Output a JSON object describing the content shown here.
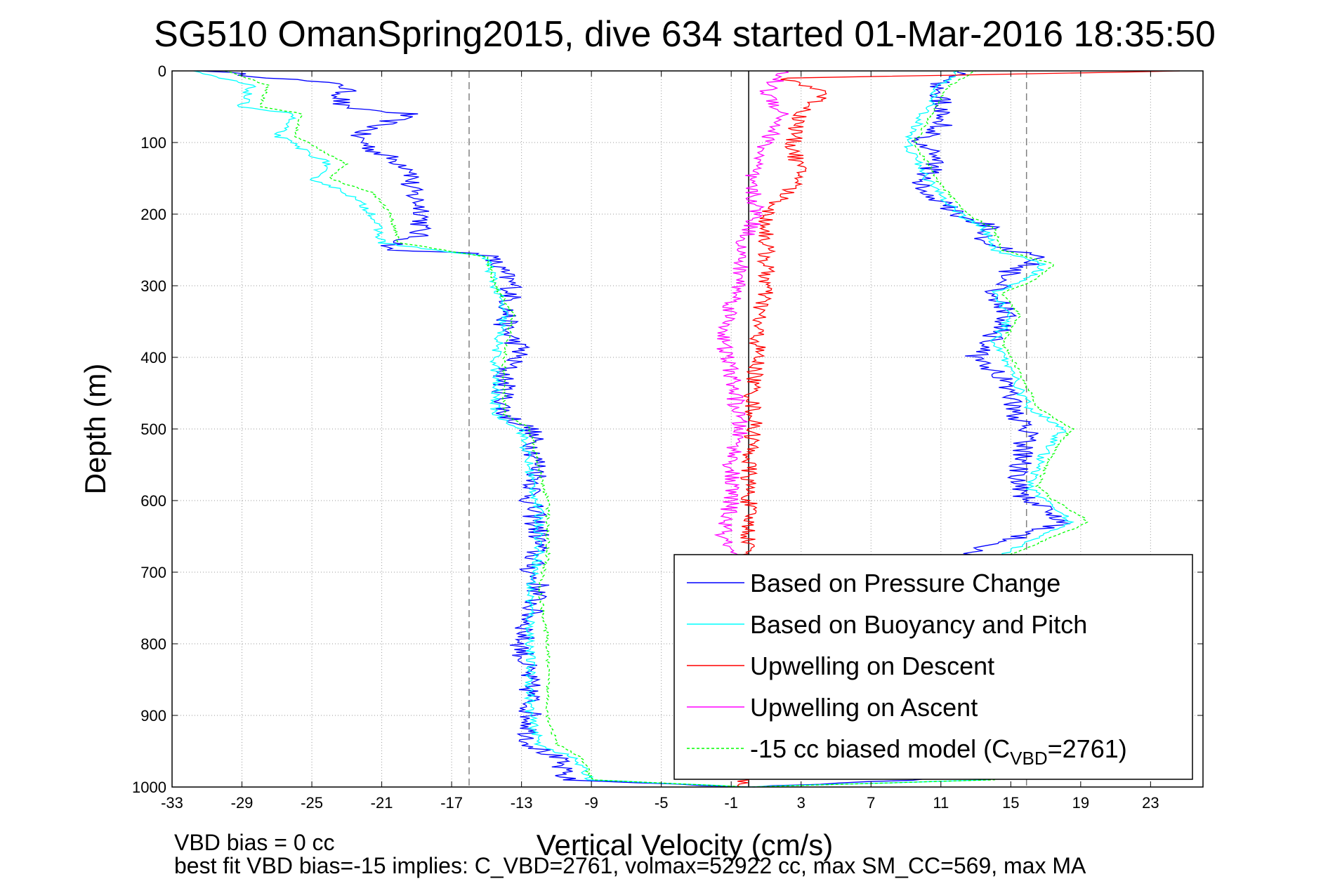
{
  "chart_data": {
    "type": "line",
    "title": "SG510 OmanSpring2015, dive 634 started 01-Mar-2016 18:35:50",
    "xlabel": "Vertical Velocity (cm/s)",
    "ylabel": "Depth (m)",
    "xlim": [
      -33,
      26
    ],
    "ylim": [
      0,
      1000
    ],
    "y_reversed": true,
    "grid": "dotted",
    "legend_position": "lower-right",
    "x_ticks": [
      -33,
      -29,
      -25,
      -21,
      -17,
      -13,
      -9,
      -5,
      -1,
      3,
      7,
      11,
      15,
      19,
      23
    ],
    "y_ticks": [
      0,
      100,
      200,
      300,
      400,
      500,
      600,
      700,
      800,
      900,
      1000
    ],
    "reference_lines": [
      {
        "x": -16,
        "style": "dashed",
        "color": "#808080"
      },
      {
        "x": 15.9,
        "style": "dashed",
        "color": "#808080"
      },
      {
        "x": 0,
        "style": "solid",
        "color": "#000000"
      }
    ],
    "series": [
      {
        "name": "Based on Pressure Change",
        "color": "#0000ff",
        "style": "solid",
        "points": [
          [
            -31,
            0
          ],
          [
            -23,
            20
          ],
          [
            -23.5,
            50
          ],
          [
            -19.5,
            60
          ],
          [
            -22.5,
            90
          ],
          [
            -21.5,
            110
          ],
          [
            -19,
            140
          ],
          [
            -19.5,
            160
          ],
          [
            -18.5,
            200
          ],
          [
            -19,
            230
          ],
          [
            -21,
            250
          ],
          [
            -15,
            255
          ],
          [
            -13.5,
            300
          ],
          [
            -14,
            360
          ],
          [
            -13,
            390
          ],
          [
            -14,
            420
          ],
          [
            -14,
            480
          ],
          [
            -12.5,
            500
          ],
          [
            -12,
            560
          ],
          [
            -12.5,
            600
          ],
          [
            -12,
            650
          ],
          [
            -12.5,
            700
          ],
          [
            -12,
            720
          ],
          [
            -13,
            800
          ],
          [
            -12.5,
            870
          ],
          [
            -12.5,
            940
          ],
          [
            -11,
            960
          ],
          [
            -10.5,
            990
          ],
          [
            0,
            1000
          ],
          [
            14,
            985
          ],
          [
            14,
            960
          ],
          [
            13.5,
            920
          ],
          [
            13,
            800
          ],
          [
            12.5,
            700
          ],
          [
            13,
            670
          ],
          [
            18,
            630
          ],
          [
            17,
            610
          ],
          [
            15.5,
            590
          ],
          [
            15.5,
            560
          ],
          [
            16,
            500
          ],
          [
            15,
            470
          ],
          [
            15,
            440
          ],
          [
            13,
            400
          ],
          [
            14,
            370
          ],
          [
            15,
            340
          ],
          [
            14,
            310
          ],
          [
            15,
            280
          ],
          [
            17,
            260
          ],
          [
            13,
            240
          ],
          [
            14,
            220
          ],
          [
            12,
            200
          ],
          [
            10,
            170
          ],
          [
            10,
            150
          ],
          [
            11,
            120
          ],
          [
            9.5,
            100
          ],
          [
            11,
            80
          ],
          [
            11,
            50
          ],
          [
            11,
            20
          ],
          [
            12,
            0
          ]
        ]
      },
      {
        "name": "Based on Buoyancy and Pitch",
        "color": "#00ffff",
        "style": "solid",
        "points": [
          [
            -32,
            0
          ],
          [
            -28.5,
            20
          ],
          [
            -29,
            50
          ],
          [
            -26,
            60
          ],
          [
            -27,
            90
          ],
          [
            -24,
            130
          ],
          [
            -25,
            150
          ],
          [
            -23,
            170
          ],
          [
            -21.5,
            200
          ],
          [
            -21,
            240
          ],
          [
            -15,
            260
          ],
          [
            -14.5,
            300
          ],
          [
            -14,
            340
          ],
          [
            -14.5,
            400
          ],
          [
            -14.5,
            480
          ],
          [
            -13,
            500
          ],
          [
            -12.5,
            560
          ],
          [
            -12,
            620
          ],
          [
            -12,
            680
          ],
          [
            -12.5,
            720
          ],
          [
            -12.5,
            800
          ],
          [
            -12.5,
            900
          ],
          [
            -12,
            940
          ],
          [
            -10,
            960
          ],
          [
            -9,
            990
          ],
          [
            0,
            1000
          ],
          [
            13.5,
            990
          ],
          [
            15,
            960
          ],
          [
            14,
            900
          ],
          [
            14,
            800
          ],
          [
            13.5,
            700
          ],
          [
            14,
            680
          ],
          [
            18.5,
            630
          ],
          [
            17,
            600
          ],
          [
            16,
            580
          ],
          [
            17,
            530
          ],
          [
            18,
            500
          ],
          [
            16,
            470
          ],
          [
            15,
            420
          ],
          [
            14,
            380
          ],
          [
            15,
            340
          ],
          [
            14,
            310
          ],
          [
            16,
            290
          ],
          [
            17,
            270
          ],
          [
            14,
            250
          ],
          [
            13.5,
            220
          ],
          [
            12,
            200
          ],
          [
            10.5,
            160
          ],
          [
            10,
            140
          ],
          [
            9,
            100
          ],
          [
            9.5,
            80
          ],
          [
            10,
            60
          ],
          [
            11,
            20
          ],
          [
            12,
            0
          ]
        ]
      },
      {
        "name": "Upwelling on Descent",
        "color": "#ff0000",
        "style": "solid",
        "points": [
          [
            25,
            0
          ],
          [
            2,
            10
          ],
          [
            4.5,
            30
          ],
          [
            3,
            60
          ],
          [
            2.5,
            100
          ],
          [
            3,
            150
          ],
          [
            1,
            200
          ],
          [
            1,
            250
          ],
          [
            1,
            300
          ],
          [
            0.5,
            350
          ],
          [
            0.5,
            400
          ],
          [
            0.2,
            450
          ],
          [
            0.3,
            500
          ],
          [
            0,
            550
          ],
          [
            0,
            600
          ],
          [
            0,
            650
          ],
          [
            0,
            700
          ],
          [
            0,
            780
          ],
          [
            -0.5,
            1000
          ]
        ]
      },
      {
        "name": "Upwelling on Ascent",
        "color": "#ff00ff",
        "style": "solid",
        "points": [
          [
            2,
            0
          ],
          [
            1,
            30
          ],
          [
            2,
            60
          ],
          [
            1,
            100
          ],
          [
            0,
            150
          ],
          [
            0.5,
            200
          ],
          [
            -0.5,
            250
          ],
          [
            -0.5,
            300
          ],
          [
            -1,
            330
          ],
          [
            -1.5,
            380
          ],
          [
            -1,
            420
          ],
          [
            -0.5,
            500
          ],
          [
            -1,
            550
          ],
          [
            -1,
            600
          ],
          [
            -1.5,
            650
          ],
          [
            -1,
            680
          ]
        ]
      },
      {
        "name": "-15 cc biased model (C_VBD=2761)",
        "color": "#00ff00",
        "style": "dashed",
        "points": [
          [
            -30,
            0
          ],
          [
            -27.5,
            20
          ],
          [
            -28,
            50
          ],
          [
            -25.5,
            60
          ],
          [
            -26,
            90
          ],
          [
            -23,
            130
          ],
          [
            -24,
            150
          ],
          [
            -21.5,
            170
          ],
          [
            -20.5,
            200
          ],
          [
            -20,
            240
          ],
          [
            -15,
            260
          ],
          [
            -14.5,
            300
          ],
          [
            -13.5,
            340
          ],
          [
            -14,
            400
          ],
          [
            -14,
            480
          ],
          [
            -12.5,
            500
          ],
          [
            -12,
            560
          ],
          [
            -11.5,
            600
          ],
          [
            -11.5,
            680
          ],
          [
            -12,
            720
          ],
          [
            -11.5,
            800
          ],
          [
            -11.5,
            900
          ],
          [
            -11,
            940
          ],
          [
            -9.5,
            960
          ],
          [
            -9,
            990
          ],
          [
            0,
            1000
          ],
          [
            14,
            990
          ],
          [
            15.5,
            960
          ],
          [
            14.5,
            900
          ],
          [
            14.5,
            800
          ],
          [
            14,
            700
          ],
          [
            14.5,
            680
          ],
          [
            19.5,
            630
          ],
          [
            17.5,
            600
          ],
          [
            16.5,
            580
          ],
          [
            17.5,
            530
          ],
          [
            18.5,
            500
          ],
          [
            16.5,
            470
          ],
          [
            15.5,
            420
          ],
          [
            14.5,
            380
          ],
          [
            15.5,
            340
          ],
          [
            14.5,
            310
          ],
          [
            16.5,
            290
          ],
          [
            17.5,
            270
          ],
          [
            14.5,
            250
          ],
          [
            14,
            220
          ],
          [
            12.5,
            200
          ],
          [
            11,
            160
          ],
          [
            10.5,
            140
          ],
          [
            9.5,
            100
          ],
          [
            10,
            80
          ],
          [
            10.5,
            60
          ],
          [
            11.5,
            20
          ],
          [
            13,
            0
          ]
        ]
      }
    ],
    "legend_entries": [
      {
        "label": "Based on Pressure Change"
      },
      {
        "label": "Based on Buoyancy and Pitch"
      },
      {
        "label": "Upwelling on Descent"
      },
      {
        "label": "Upwelling on Ascent"
      },
      {
        "label": "-15 cc biased model (C",
        "sub": "VBD",
        "suffix": "=2761)"
      }
    ]
  },
  "footer": {
    "line1": "VBD bias = 0 cc",
    "line2": "best fit VBD bias=-15 implies: C_VBD=2761, volmax=52922 cc, max SM_CC=569, max MA"
  }
}
